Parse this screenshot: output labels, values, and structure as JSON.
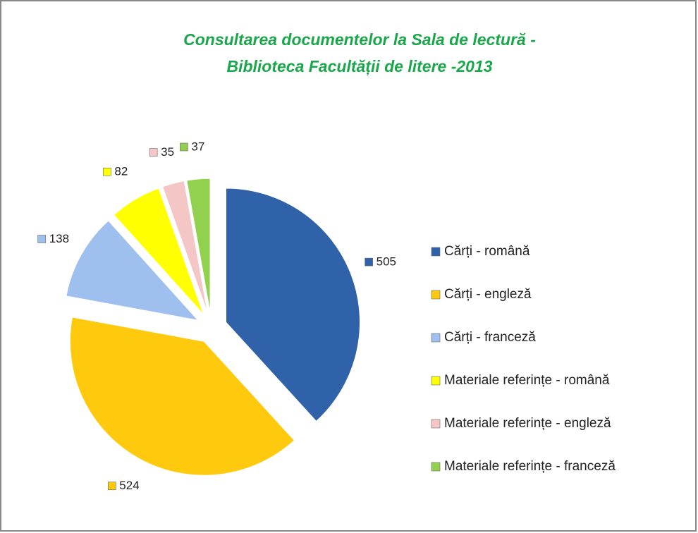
{
  "chart_data": {
    "type": "pie",
    "title": [
      "Consultarea documentelor  la Sala de lectură  -",
      "Biblioteca Facultății de litere -2013"
    ],
    "categories": [
      "Cărți - română",
      "Cărți - engleză",
      "Cărți - franceză",
      "Materiale referințe - română",
      "Materiale referințe - engleză",
      "Materiale referințe - franceză"
    ],
    "values": [
      505,
      524,
      138,
      82,
      35,
      37
    ],
    "colors": [
      "#2f62a8",
      "#ffc90e",
      "#9fc0ee",
      "#ffff00",
      "#f4c6c6",
      "#92d050"
    ],
    "legend": "right"
  }
}
